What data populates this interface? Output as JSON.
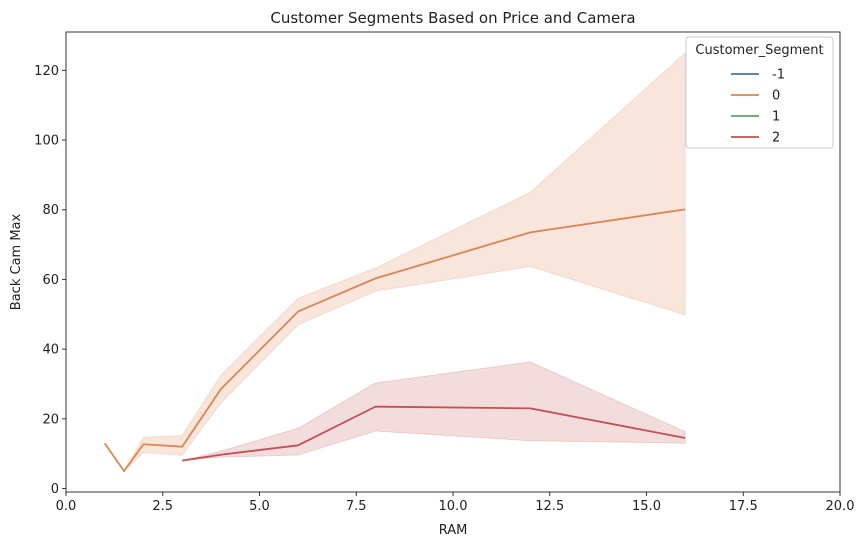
{
  "chart_data": {
    "type": "line",
    "title": "Customer Segments Based on Price and Camera",
    "xlabel": "RAM",
    "ylabel": "Back Cam Max",
    "xlim": [
      0,
      20
    ],
    "ylim": [
      -1,
      131
    ],
    "xticks": [
      0,
      2.5,
      5,
      7.5,
      10,
      12.5,
      15,
      17.5,
      20
    ],
    "xtick_labels": [
      "0.0",
      "2.5",
      "5.0",
      "7.5",
      "10.0",
      "12.5",
      "15.0",
      "17.5",
      "20.0"
    ],
    "yticks": [
      0,
      20,
      40,
      60,
      80,
      100,
      120
    ],
    "ytick_labels": [
      "0",
      "20",
      "40",
      "60",
      "80",
      "100",
      "120"
    ],
    "grid": false,
    "legend": {
      "title": "Customer_Segment",
      "placement": "top-right",
      "entries": [
        "-1",
        "0",
        "1",
        "2"
      ]
    },
    "series": [
      {
        "name": "-1",
        "color": "#4c72b0",
        "points": []
      },
      {
        "name": "0",
        "color": "#dd8452",
        "points": [
          {
            "x": 1,
            "y": 13,
            "lo": 13,
            "hi": 13
          },
          {
            "x": 1.5,
            "y": 5,
            "lo": 5,
            "hi": 5
          },
          {
            "x": 2,
            "y": 12.7,
            "lo": 10.3,
            "hi": 14.7
          },
          {
            "x": 3,
            "y": 12,
            "lo": 9.5,
            "hi": 15.2
          },
          {
            "x": 4,
            "y": 28.5,
            "lo": 24.5,
            "hi": 32.5
          },
          {
            "x": 6,
            "y": 50.8,
            "lo": 47,
            "hi": 54.6
          },
          {
            "x": 8,
            "y": 60.3,
            "lo": 56.6,
            "hi": 63.3
          },
          {
            "x": 12,
            "y": 73.5,
            "lo": 63.7,
            "hi": 85
          },
          {
            "x": 16,
            "y": 80.1,
            "lo": 49.8,
            "hi": 125
          }
        ]
      },
      {
        "name": "1",
        "color": "#55a868",
        "points": []
      },
      {
        "name": "2",
        "color": "#c44e52",
        "points": [
          {
            "x": 3,
            "y": 8,
            "lo": 8,
            "hi": 8
          },
          {
            "x": 4,
            "y": 9.7,
            "lo": 9,
            "hi": 10.7
          },
          {
            "x": 6,
            "y": 12.4,
            "lo": 9.6,
            "hi": 17.3
          },
          {
            "x": 8,
            "y": 23.5,
            "lo": 16.5,
            "hi": 30.3
          },
          {
            "x": 12,
            "y": 23,
            "lo": 13.7,
            "hi": 36.3
          },
          {
            "x": 16,
            "y": 14.5,
            "lo": 13,
            "hi": 16.3
          }
        ]
      }
    ]
  }
}
